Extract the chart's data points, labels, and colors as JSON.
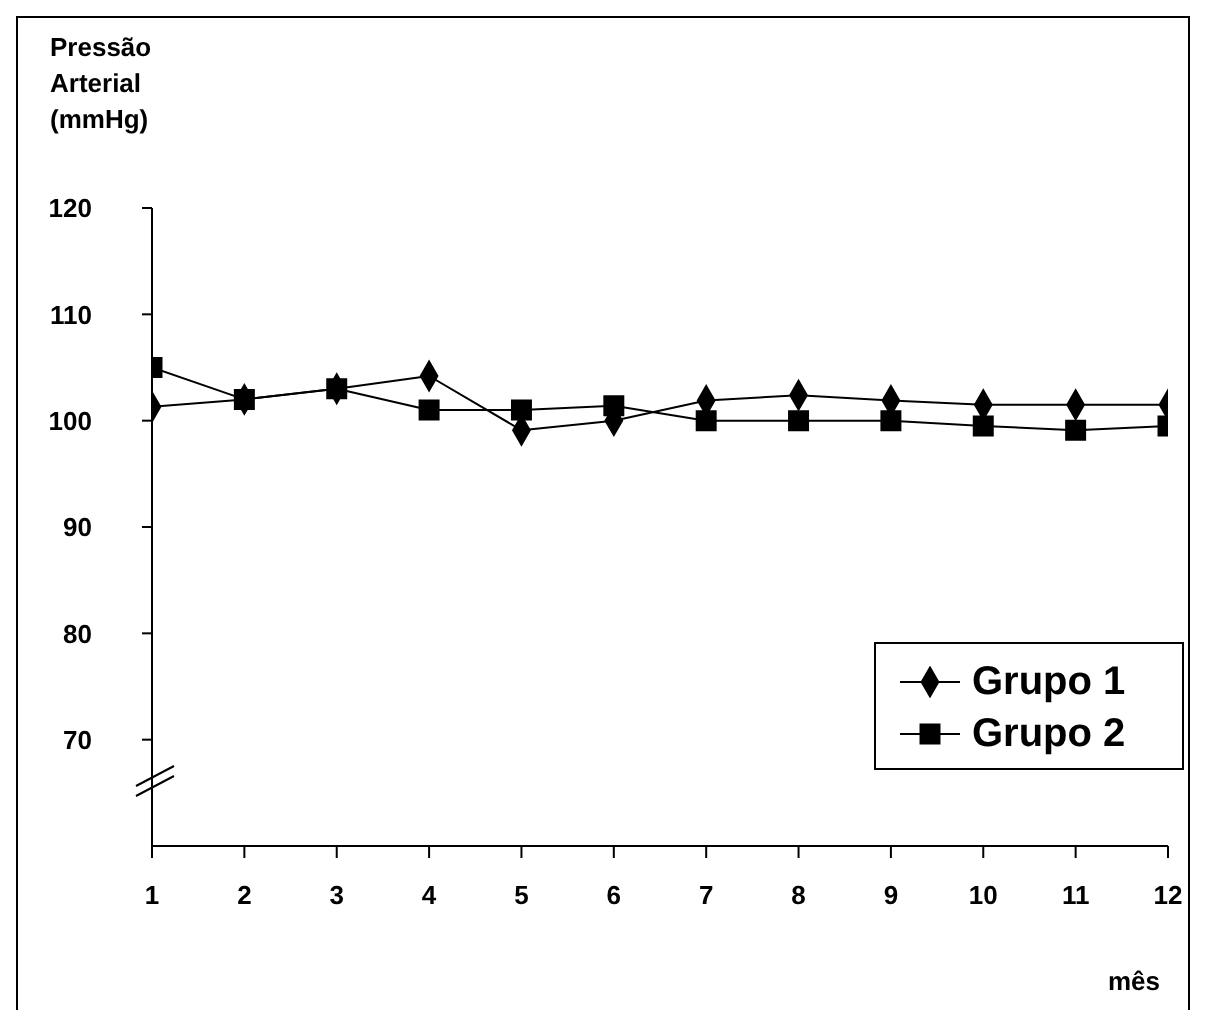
{
  "chart_data": {
    "type": "line",
    "ylabel": "Pressão Arterial (mmHg)",
    "xlabel": "mês",
    "x": [
      1,
      2,
      3,
      4,
      5,
      6,
      7,
      8,
      9,
      10,
      11,
      12
    ],
    "xlim": [
      1,
      12
    ],
    "xticks": [
      1,
      2,
      3,
      4,
      5,
      6,
      7,
      8,
      9,
      10,
      11,
      12
    ],
    "ylim": [
      60,
      120
    ],
    "yticks": [
      70,
      80,
      90,
      100,
      110,
      120
    ],
    "series": [
      {
        "name": "Grupo 1",
        "color": "#000000",
        "marker": "diamond",
        "values": [
          101.3,
          102,
          103,
          104.2,
          99.1,
          100,
          101.9,
          102.4,
          101.9,
          101.5,
          101.5,
          101.5
        ]
      },
      {
        "name": "Grupo 2",
        "color": "#000000",
        "marker": "square",
        "values": [
          105,
          102,
          103,
          101,
          101,
          101.4,
          100,
          100,
          100,
          99.5,
          99.1,
          99.5
        ]
      }
    ],
    "line_style": "solid",
    "grid": false,
    "legend": "bottom right"
  }
}
